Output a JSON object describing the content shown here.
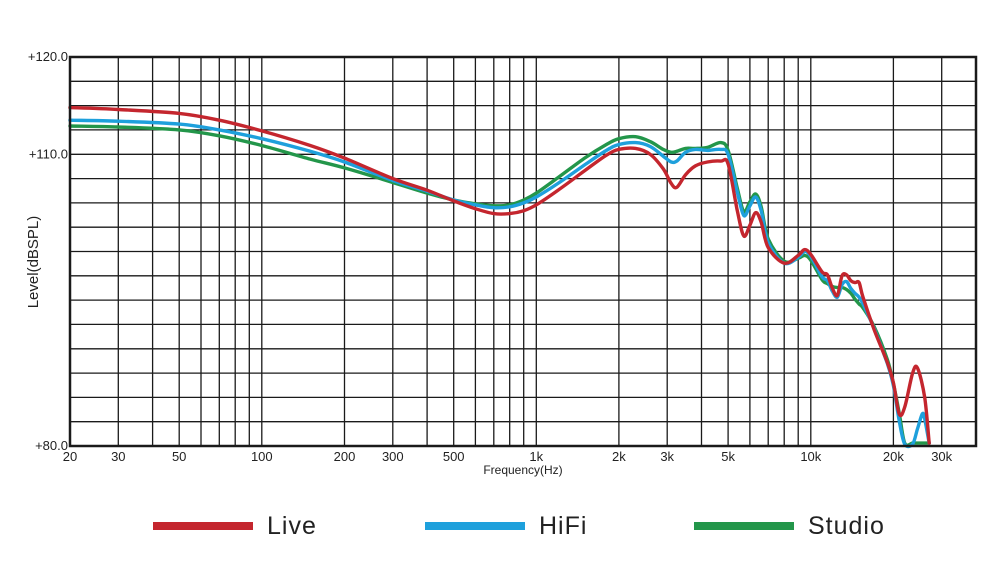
{
  "chart_data": {
    "type": "line",
    "title": "",
    "xlabel": "Frequency(Hz)",
    "ylabel": "Level(dBSPL)",
    "xscale": "log",
    "xlim": [
      20,
      40000
    ],
    "ylim": [
      80,
      120
    ],
    "grid": true,
    "legend_position": "bottom",
    "x_ticks": [
      {
        "value": 20,
        "label": "20"
      },
      {
        "value": 30,
        "label": "30"
      },
      {
        "value": 50,
        "label": "50"
      },
      {
        "value": 100,
        "label": "100"
      },
      {
        "value": 200,
        "label": "200"
      },
      {
        "value": 300,
        "label": "300"
      },
      {
        "value": 500,
        "label": "500"
      },
      {
        "value": 1000,
        "label": "1k"
      },
      {
        "value": 2000,
        "label": "2k"
      },
      {
        "value": 3000,
        "label": "3k"
      },
      {
        "value": 5000,
        "label": "5k"
      },
      {
        "value": 10000,
        "label": "10k"
      },
      {
        "value": 20000,
        "label": "20k"
      },
      {
        "value": 30000,
        "label": "30k"
      }
    ],
    "y_ticks": [
      {
        "value": 120,
        "label": "+120.0"
      },
      {
        "value": 110,
        "label": "+110.0"
      },
      {
        "value": 80,
        "label": "+80.0"
      }
    ],
    "series": [
      {
        "name": "Live",
        "color": "#c4262e",
        "points": [
          [
            20,
            114.8
          ],
          [
            30,
            114.6
          ],
          [
            50,
            114.2
          ],
          [
            70,
            113.5
          ],
          [
            100,
            112.4
          ],
          [
            150,
            110.9
          ],
          [
            200,
            109.6
          ],
          [
            300,
            107.5
          ],
          [
            400,
            106.3
          ],
          [
            500,
            105.2
          ],
          [
            600,
            104.4
          ],
          [
            700,
            103.9
          ],
          [
            800,
            103.9
          ],
          [
            900,
            104.2
          ],
          [
            1000,
            104.8
          ],
          [
            1200,
            106.3
          ],
          [
            1500,
            108.3
          ],
          [
            1800,
            109.9
          ],
          [
            2000,
            110.5
          ],
          [
            2300,
            110.6
          ],
          [
            2600,
            110.0
          ],
          [
            2900,
            108.5
          ],
          [
            3100,
            107.0
          ],
          [
            3250,
            106.6
          ],
          [
            3500,
            107.9
          ],
          [
            3800,
            108.8
          ],
          [
            4200,
            109.2
          ],
          [
            4700,
            109.3
          ],
          [
            5000,
            109.0
          ],
          [
            5400,
            104.2
          ],
          [
            5700,
            101.6
          ],
          [
            6000,
            102.7
          ],
          [
            6300,
            104.0
          ],
          [
            6600,
            103.0
          ],
          [
            7000,
            100.4
          ],
          [
            8000,
            98.8
          ],
          [
            9000,
            99.6
          ],
          [
            9500,
            100.2
          ],
          [
            10000,
            99.7
          ],
          [
            11000,
            97.9
          ],
          [
            11500,
            97.6
          ],
          [
            12000,
            96.2
          ],
          [
            12500,
            95.5
          ],
          [
            13000,
            97.5
          ],
          [
            13500,
            97.6
          ],
          [
            14000,
            97.0
          ],
          [
            14500,
            96.8
          ],
          [
            15000,
            96.8
          ],
          [
            15500,
            95.3
          ],
          [
            17000,
            92.0
          ],
          [
            19000,
            88.6
          ],
          [
            20000,
            86.5
          ],
          [
            21000,
            83.3
          ],
          [
            22000,
            84.0
          ],
          [
            23500,
            87.5
          ],
          [
            24500,
            88.0
          ],
          [
            26000,
            85.0
          ],
          [
            27000,
            80.3
          ]
        ]
      },
      {
        "name": "HiFi",
        "color": "#1ea0dc",
        "points": [
          [
            20,
            113.5
          ],
          [
            30,
            113.4
          ],
          [
            50,
            113.1
          ],
          [
            70,
            112.5
          ],
          [
            100,
            111.6
          ],
          [
            150,
            110.3
          ],
          [
            200,
            109.2
          ],
          [
            300,
            107.3
          ],
          [
            400,
            106.2
          ],
          [
            500,
            105.3
          ],
          [
            600,
            104.8
          ],
          [
            700,
            104.5
          ],
          [
            800,
            104.6
          ],
          [
            900,
            105.0
          ],
          [
            1000,
            105.6
          ],
          [
            1200,
            107.0
          ],
          [
            1500,
            108.9
          ],
          [
            1800,
            110.4
          ],
          [
            2000,
            111.0
          ],
          [
            2300,
            111.2
          ],
          [
            2600,
            110.8
          ],
          [
            2900,
            109.8
          ],
          [
            3100,
            109.2
          ],
          [
            3250,
            109.3
          ],
          [
            3500,
            110.2
          ],
          [
            3800,
            110.5
          ],
          [
            4200,
            110.4
          ],
          [
            4700,
            110.5
          ],
          [
            5000,
            110.0
          ],
          [
            5400,
            106.1
          ],
          [
            5700,
            103.7
          ],
          [
            6000,
            104.7
          ],
          [
            6300,
            105.6
          ],
          [
            6600,
            104.2
          ],
          [
            7000,
            100.9
          ],
          [
            8000,
            98.8
          ],
          [
            9000,
            99.4
          ],
          [
            9500,
            100.0
          ],
          [
            10000,
            99.5
          ],
          [
            11000,
            97.4
          ],
          [
            11500,
            97.0
          ],
          [
            12000,
            95.9
          ],
          [
            12500,
            95.3
          ],
          [
            13000,
            96.6
          ],
          [
            13500,
            96.9
          ],
          [
            14000,
            96.2
          ],
          [
            14500,
            95.7
          ],
          [
            15000,
            95.3
          ],
          [
            15500,
            94.6
          ],
          [
            17000,
            92.1
          ],
          [
            19000,
            88.5
          ],
          [
            20000,
            86.2
          ],
          [
            21000,
            82.6
          ],
          [
            22000,
            80.2
          ],
          [
            23500,
            80.2
          ],
          [
            24500,
            81.8
          ],
          [
            25500,
            83.3
          ],
          [
            26000,
            82.8
          ],
          [
            27000,
            80.3
          ]
        ]
      },
      {
        "name": "Studio",
        "color": "#23964a",
        "points": [
          [
            20,
            112.9
          ],
          [
            30,
            112.8
          ],
          [
            50,
            112.5
          ],
          [
            70,
            111.9
          ],
          [
            100,
            110.9
          ],
          [
            150,
            109.5
          ],
          [
            200,
            108.6
          ],
          [
            300,
            107.1
          ],
          [
            400,
            106.0
          ],
          [
            500,
            105.3
          ],
          [
            600,
            104.9
          ],
          [
            700,
            104.7
          ],
          [
            800,
            104.8
          ],
          [
            900,
            105.3
          ],
          [
            1000,
            106.0
          ],
          [
            1200,
            107.6
          ],
          [
            1500,
            109.6
          ],
          [
            1800,
            111.0
          ],
          [
            2000,
            111.6
          ],
          [
            2300,
            111.8
          ],
          [
            2600,
            111.3
          ],
          [
            2900,
            110.5
          ],
          [
            3100,
            110.2
          ],
          [
            3250,
            110.3
          ],
          [
            3500,
            110.6
          ],
          [
            3800,
            110.6
          ],
          [
            4200,
            110.7
          ],
          [
            4700,
            111.2
          ],
          [
            5000,
            110.4
          ],
          [
            5400,
            106.5
          ],
          [
            5700,
            104.1
          ],
          [
            6000,
            105.1
          ],
          [
            6300,
            105.9
          ],
          [
            6600,
            104.6
          ],
          [
            7000,
            101.3
          ],
          [
            8000,
            99.0
          ],
          [
            9000,
            99.3
          ],
          [
            9500,
            99.6
          ],
          [
            10000,
            99.1
          ],
          [
            11000,
            97.1
          ],
          [
            11500,
            96.7
          ],
          [
            12000,
            96.4
          ],
          [
            12500,
            96.3
          ],
          [
            13000,
            96.3
          ],
          [
            13500,
            96.1
          ],
          [
            14000,
            95.7
          ],
          [
            14500,
            95.1
          ],
          [
            15000,
            94.6
          ],
          [
            15500,
            94.2
          ],
          [
            17000,
            92.3
          ],
          [
            19000,
            88.9
          ],
          [
            20000,
            86.4
          ],
          [
            21000,
            83.4
          ],
          [
            22000,
            80.3
          ],
          [
            23500,
            80.3
          ],
          [
            24500,
            80.3
          ],
          [
            25500,
            80.3
          ],
          [
            27000,
            80.3
          ]
        ]
      }
    ]
  }
}
